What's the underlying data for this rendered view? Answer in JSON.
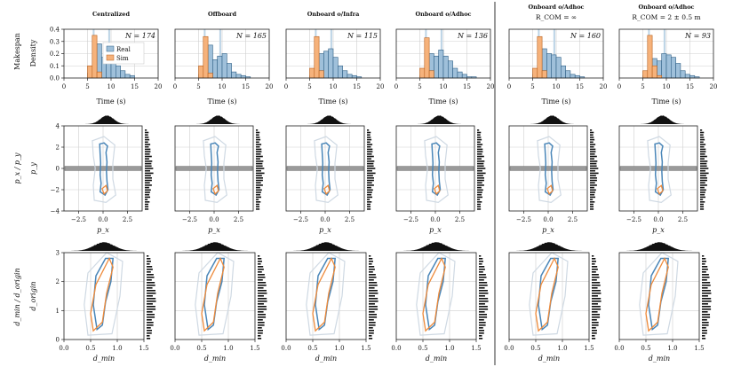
{
  "colors": {
    "real": "#4a86b8",
    "sim": "#ee8a3a",
    "real_fill": "#9fc0da",
    "sim_fill": "#f6b27b",
    "axis": "#222222",
    "grid": "#cfcfcf",
    "divider": "#555555"
  },
  "chart_data": [
    {
      "type": "bar",
      "name": "time-histograms",
      "row_label": "Makespan",
      "ylabel": "Density",
      "xlabel": "Time (s)",
      "xlim": [
        0,
        20
      ],
      "ylim": [
        0,
        0.4
      ],
      "xticks": [
        "0",
        "5",
        "10",
        "15",
        "20"
      ],
      "yticks": [
        "0.0",
        "0.1",
        "0.2",
        "0.3",
        "0.4"
      ],
      "legend": [
        "Real",
        "Sim"
      ],
      "bin_edges": [
        5,
        6,
        7,
        8,
        9,
        10,
        11,
        12,
        13,
        14,
        15,
        16,
        17,
        18,
        19
      ],
      "panels": [
        {
          "title": "Centralized",
          "n_label": "N = 174",
          "sim": [
            0.1,
            0.35,
            0.05,
            0,
            0,
            0,
            0,
            0,
            0,
            0,
            0,
            0,
            0,
            0
          ],
          "real": [
            0.04,
            0.26,
            0.28,
            0.17,
            0.16,
            0.2,
            0.1,
            0.06,
            0.03,
            0.02,
            0,
            0,
            0,
            0
          ]
        },
        {
          "title": "Offboard",
          "n_label": "N = 165",
          "sim": [
            0.1,
            0.34,
            0.04,
            0,
            0,
            0,
            0,
            0,
            0,
            0,
            0,
            0,
            0,
            0
          ],
          "real": [
            0.03,
            0.18,
            0.27,
            0.15,
            0.18,
            0.2,
            0.12,
            0.05,
            0.03,
            0.02,
            0.01,
            0,
            0,
            0
          ]
        },
        {
          "title": "Onboard o/Infra",
          "n_label": "N = 115",
          "sim": [
            0.08,
            0.34,
            0.06,
            0,
            0,
            0,
            0,
            0,
            0,
            0,
            0,
            0,
            0,
            0
          ],
          "real": [
            0.02,
            0.14,
            0.2,
            0.22,
            0.24,
            0.17,
            0.1,
            0.06,
            0.03,
            0.02,
            0.01,
            0,
            0,
            0
          ]
        },
        {
          "title": "Onboard o/Adhoc",
          "n_label": "N = 136",
          "sim": [
            0.08,
            0.33,
            0.06,
            0,
            0,
            0,
            0,
            0,
            0,
            0,
            0,
            0,
            0,
            0
          ],
          "real": [
            0.02,
            0.1,
            0.2,
            0.18,
            0.23,
            0.18,
            0.14,
            0.08,
            0.05,
            0.03,
            0.01,
            0.01,
            0,
            0
          ]
        },
        {
          "title": "Onboard o/Adhoc",
          "subtitle": "R_COM = ∞",
          "n_label": "N = 160",
          "sim": [
            0.08,
            0.34,
            0.06,
            0,
            0,
            0,
            0,
            0,
            0,
            0,
            0,
            0,
            0,
            0
          ],
          "real": [
            0.03,
            0.16,
            0.24,
            0.2,
            0.19,
            0.17,
            0.1,
            0.06,
            0.03,
            0.02,
            0.01,
            0,
            0,
            0
          ]
        },
        {
          "title": "Onboard o/Adhoc",
          "subtitle": "R_COM = 2 ± 0.5 m",
          "n_label": "N = 93",
          "sim": [
            0.06,
            0.35,
            0.1,
            0.02,
            0,
            0,
            0,
            0,
            0,
            0,
            0,
            0,
            0,
            0
          ],
          "real": [
            0.02,
            0.08,
            0.16,
            0.14,
            0.2,
            0.19,
            0.17,
            0.12,
            0.06,
            0.03,
            0.02,
            0.01,
            0,
            0
          ]
        }
      ]
    },
    {
      "type": "scatter",
      "name": "position-density",
      "row_label": "p_x / p_y",
      "xlabel": "p_x",
      "ylabel": "p_y",
      "xlim": [
        -4,
        4
      ],
      "ylim": [
        -4,
        4
      ],
      "xticks": [
        "−2.5",
        "0.0",
        "2.5"
      ],
      "xtick_values": [
        -2.5,
        0,
        2.5
      ],
      "yticks": [
        "−4",
        "−2",
        "0",
        "2",
        "4"
      ],
      "ytick_values": [
        -4,
        -2,
        0,
        2,
        4
      ],
      "real_path": [
        [
          0.1,
          2.4
        ],
        [
          -0.35,
          2.3
        ],
        [
          -0.3,
          1.4
        ],
        [
          -0.25,
          0.5
        ],
        [
          -0.3,
          -0.6
        ],
        [
          -0.2,
          -1.4
        ],
        [
          -0.3,
          -2.2
        ],
        [
          0.2,
          -2.5
        ],
        [
          0.5,
          -2.0
        ],
        [
          0.4,
          -1.2
        ],
        [
          0.35,
          -0.3
        ],
        [
          0.4,
          0.6
        ],
        [
          0.3,
          1.5
        ],
        [
          0.45,
          2.1
        ],
        [
          0.1,
          2.4
        ]
      ],
      "sim_path": [
        [
          -0.1,
          -1.9
        ],
        [
          0.1,
          -2.4
        ],
        [
          0.45,
          -2.1
        ],
        [
          0.3,
          -1.6
        ],
        [
          -0.1,
          -1.9
        ]
      ],
      "outer_path": [
        [
          0.1,
          3.0
        ],
        [
          -1.1,
          2.6
        ],
        [
          -1.0,
          1.2
        ],
        [
          -0.8,
          0
        ],
        [
          -1.0,
          -1.6
        ],
        [
          -0.9,
          -3.0
        ],
        [
          0.3,
          -3.2
        ],
        [
          1.3,
          -2.5
        ],
        [
          1.0,
          -1.0
        ],
        [
          1.0,
          0.5
        ],
        [
          1.2,
          2.2
        ],
        [
          0.1,
          3.0
        ]
      ]
    },
    {
      "type": "scatter",
      "name": "distance-density",
      "row_label": "d_min / d_origin",
      "xlabel": "d_min",
      "ylabel": "d_origin",
      "xlim": [
        0,
        1.5
      ],
      "ylim": [
        0,
        3
      ],
      "xticks": [
        "0.0",
        "0.5",
        "1.0",
        "1.5"
      ],
      "xtick_values": [
        0,
        0.5,
        1.0,
        1.5
      ],
      "yticks": [
        "0",
        "1",
        "2",
        "3"
      ],
      "ytick_values": [
        0,
        1,
        2,
        3
      ],
      "real_path": [
        [
          0.78,
          2.8
        ],
        [
          0.6,
          2.2
        ],
        [
          0.55,
          1.2
        ],
        [
          0.62,
          0.35
        ],
        [
          0.72,
          0.5
        ],
        [
          0.78,
          1.3
        ],
        [
          0.88,
          2.0
        ],
        [
          0.92,
          2.8
        ],
        [
          0.78,
          2.8
        ]
      ],
      "sim_path": [
        [
          0.85,
          2.8
        ],
        [
          0.6,
          1.9
        ],
        [
          0.5,
          0.9
        ],
        [
          0.55,
          0.3
        ],
        [
          0.72,
          0.6
        ],
        [
          0.8,
          1.6
        ],
        [
          0.92,
          2.5
        ],
        [
          0.85,
          2.8
        ]
      ],
      "outer_path": [
        [
          0.8,
          3.0
        ],
        [
          0.45,
          2.3
        ],
        [
          0.38,
          1.2
        ],
        [
          0.45,
          0.15
        ],
        [
          0.9,
          0.2
        ],
        [
          1.05,
          1.5
        ],
        [
          1.1,
          2.7
        ],
        [
          0.8,
          3.0
        ]
      ]
    }
  ]
}
